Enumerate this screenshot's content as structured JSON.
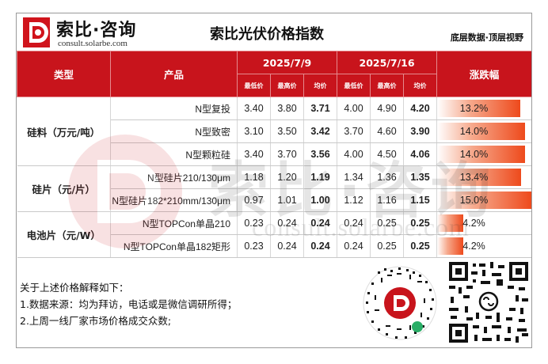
{
  "brand": {
    "name": "索比·咨询",
    "url": "consult.solarbe.com"
  },
  "title": "索比光伏价格指数",
  "slogan": "底层数据·顶层视野",
  "headers": {
    "type": "类型",
    "product": "产品",
    "date1": "2025/7/9",
    "date2": "2025/7/16",
    "change": "涨跌幅",
    "low": "最低价",
    "high": "最高价",
    "avg": "均价"
  },
  "rows": [
    {
      "product": "N型复投",
      "low1": "3.40",
      "high1": "3.80",
      "avg1": "3.71",
      "low2": "4.00",
      "high2": "4.90",
      "avg2": "4.20",
      "change": "13.2%",
      "change_pct": 13.2
    },
    {
      "product": "N型致密",
      "low1": "3.10",
      "high1": "3.50",
      "avg1": "3.42",
      "low2": "3.70",
      "high2": "4.60",
      "avg2": "3.90",
      "change": "14.0%",
      "change_pct": 14.0
    },
    {
      "product": "N型颗粒硅",
      "low1": "3.40",
      "high1": "3.70",
      "avg1": "3.56",
      "low2": "4.00",
      "high2": "4.50",
      "avg2": "4.06",
      "change": "14.0%",
      "change_pct": 14.0
    },
    {
      "product": "N型硅片210/130μm",
      "low1": "1.18",
      "high1": "1.20",
      "avg1": "1.19",
      "low2": "1.34",
      "high2": "1.36",
      "avg2": "1.35",
      "change": "13.4%",
      "change_pct": 13.4
    },
    {
      "product": "N型硅片182*210mm/130μm",
      "low1": "0.97",
      "high1": "1.01",
      "avg1": "1.00",
      "low2": "1.12",
      "high2": "1.16",
      "avg2": "1.15",
      "change": "15.0%",
      "change_pct": 15.0
    },
    {
      "product": "N型TOPCon单晶210",
      "low1": "0.23",
      "high1": "0.24",
      "avg1": "0.24",
      "low2": "0.24",
      "high2": "0.25",
      "avg2": "0.25",
      "change": "4.2%",
      "change_pct": 4.2
    },
    {
      "product": "N型TOPCon单晶182矩形",
      "low1": "0.23",
      "high1": "0.24",
      "avg1": "0.24",
      "low2": "0.24",
      "high2": "0.25",
      "avg2": "0.25",
      "change": "4.2%",
      "change_pct": 4.2
    }
  ],
  "categories": [
    {
      "label": "硅料（万元/吨）",
      "rows": 3
    },
    {
      "label": "硅片（元/片）",
      "rows": 2
    },
    {
      "label": "电池片（元/W）",
      "rows": 2
    }
  ],
  "notes": {
    "heading": "关于上述价格解释如下：",
    "line1": "1.数据来源：均为拜访，电话或是微信调研所得；",
    "line2": "2.上周一线厂家市场价格成交众数;"
  },
  "watermark": {
    "text": "索比·咨询",
    "url": "consult.solarbe.com"
  },
  "colors": {
    "header_red": "#c8141c",
    "price_up_red": "#e0141c",
    "bar_orange": "#ee4a1c"
  }
}
